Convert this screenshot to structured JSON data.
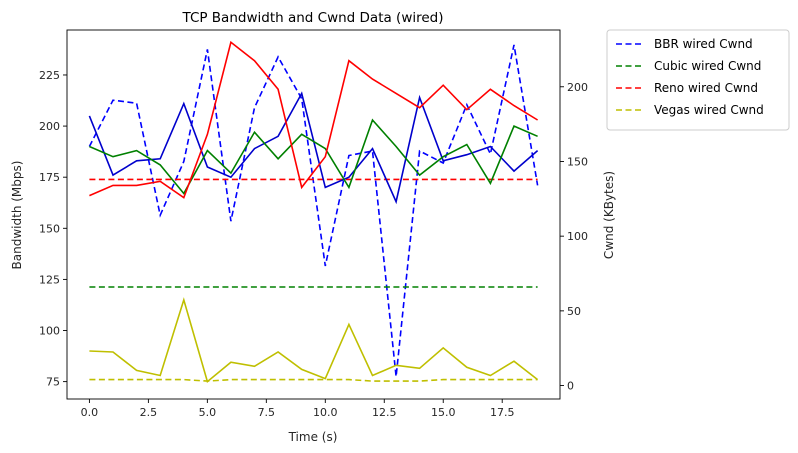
{
  "chart_data": {
    "type": "line",
    "title": "TCP Bandwidth and Cwnd Data (wired)",
    "xlabel": "Time (s)",
    "ylabel_left": "Bandwidth (Mbps)",
    "ylabel_right": "Cwnd (KBytes)",
    "xlim": [
      -0.95,
      19.95
    ],
    "ylim_left": [
      66.5,
      247
    ],
    "ylim_right": [
      -9,
      238
    ],
    "x_ticks": [
      0.0,
      2.5,
      5.0,
      7.5,
      10.0,
      12.5,
      15.0,
      17.5
    ],
    "x_tick_labels": [
      "0.0",
      "2.5",
      "5.0",
      "7.5",
      "10.0",
      "12.5",
      "15.0",
      "17.5"
    ],
    "y_left_ticks": [
      75,
      100,
      125,
      150,
      175,
      200,
      225
    ],
    "y_left_tick_labels": [
      "75",
      "100",
      "125",
      "150",
      "175",
      "200",
      "225"
    ],
    "y_right_ticks": [
      0,
      50,
      100,
      150,
      200
    ],
    "y_right_tick_labels": [
      "0",
      "50",
      "100",
      "150",
      "200"
    ],
    "grid": false,
    "legend_position": "outside-top-right",
    "x": [
      0,
      1,
      2,
      3,
      4,
      5,
      6,
      7,
      8,
      9,
      10,
      11,
      12,
      13,
      14,
      15,
      16,
      17,
      18,
      19
    ],
    "series": [
      {
        "name": "BBR wired Cwnd",
        "axis": "right",
        "dash": "dashed",
        "color": "#0000ff",
        "in_legend": true,
        "values": [
          160,
          191,
          189,
          114,
          150,
          225,
          110,
          186,
          220,
          192,
          80,
          154,
          157,
          6,
          157,
          149,
          188,
          155,
          228,
          134
        ]
      },
      {
        "name": "Cubic wired Cwnd",
        "axis": "right",
        "dash": "dashed",
        "color": "#008000",
        "in_legend": true,
        "values": [
          66,
          66,
          66,
          66,
          66,
          66,
          66,
          66,
          66,
          66,
          66,
          66,
          66,
          66,
          66,
          66,
          66,
          66,
          66,
          66
        ]
      },
      {
        "name": "Reno wired Cwnd",
        "axis": "right",
        "dash": "dashed",
        "color": "#ff0000",
        "in_legend": true,
        "values": [
          138,
          138,
          138,
          138,
          138,
          138,
          138,
          138,
          138,
          138,
          138,
          138,
          138,
          138,
          138,
          138,
          138,
          138,
          138,
          138
        ]
      },
      {
        "name": "Vegas wired Cwnd",
        "axis": "right",
        "dash": "dashed",
        "color": "#bfbf00",
        "in_legend": true,
        "values": [
          4,
          4,
          4,
          4,
          4,
          3,
          4,
          4,
          4,
          4,
          4,
          4,
          3,
          3,
          3,
          4,
          4,
          4,
          4,
          4
        ]
      },
      {
        "name": "",
        "axis": "left",
        "dash": "solid",
        "color": "#0000cc",
        "in_legend": false,
        "values": [
          205,
          176,
          183,
          184,
          211,
          180,
          175,
          189,
          195,
          216,
          170,
          175,
          189,
          163,
          214,
          183,
          186,
          190,
          178,
          188
        ]
      },
      {
        "name": "",
        "axis": "left",
        "dash": "solid",
        "color": "#008000",
        "in_legend": false,
        "values": [
          190,
          185,
          188,
          181,
          167,
          188,
          177,
          197,
          184,
          196,
          189,
          170,
          203,
          190,
          176,
          185,
          191,
          172,
          200,
          195
        ]
      },
      {
        "name": "",
        "axis": "left",
        "dash": "solid",
        "color": "#ff0000",
        "in_legend": false,
        "values": [
          166,
          171,
          171,
          173,
          165,
          196,
          241,
          232,
          218,
          170,
          185,
          232,
          223,
          216,
          209,
          220,
          208,
          218,
          210,
          203
        ]
      },
      {
        "name": "",
        "axis": "left",
        "dash": "solid",
        "color": "#bfbf00",
        "in_legend": false,
        "values": [
          90,
          89.5,
          80.5,
          78,
          115,
          75,
          84.5,
          82.5,
          89.5,
          81,
          76.5,
          103,
          78,
          83,
          81.5,
          91.5,
          82,
          78,
          85,
          76
        ]
      }
    ]
  }
}
